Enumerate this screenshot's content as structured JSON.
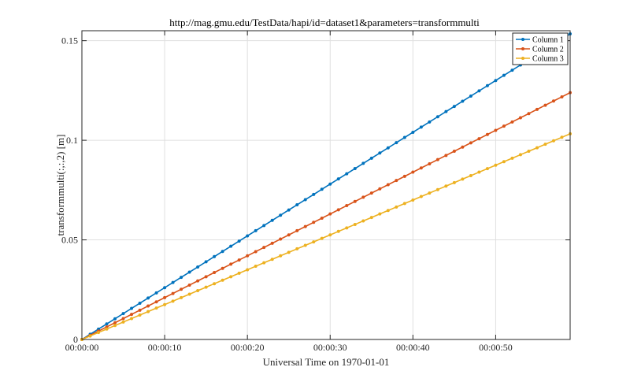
{
  "chart_data": {
    "type": "line",
    "title": "http://mag.gmu.edu/TestData/hapi/id=dataset1&parameters=transformmulti",
    "xlabel": "Universal Time on 1970-01-01",
    "ylabel": "transformmulti(:,:,2) [m]",
    "x_unit": "seconds",
    "xlim": [
      0,
      59
    ],
    "ylim": [
      0,
      0.155
    ],
    "x_ticks": [
      0,
      10,
      20,
      30,
      40,
      50
    ],
    "x_tick_labels": [
      "00:00:00",
      "00:00:10",
      "00:00:20",
      "00:00:30",
      "00:00:40",
      "00:00:50"
    ],
    "y_ticks": [
      0,
      0.05,
      0.1,
      0.15
    ],
    "y_tick_labels": [
      "0",
      "0.05",
      "0.1",
      "0.15"
    ],
    "grid": true,
    "legend_position": "top-right",
    "x": [
      0,
      1,
      2,
      3,
      4,
      5,
      6,
      7,
      8,
      9,
      10,
      11,
      12,
      13,
      14,
      15,
      16,
      17,
      18,
      19,
      20,
      21,
      22,
      23,
      24,
      25,
      26,
      27,
      28,
      29,
      30,
      31,
      32,
      33,
      34,
      35,
      36,
      37,
      38,
      39,
      40,
      41,
      42,
      43,
      44,
      45,
      46,
      47,
      48,
      49,
      50,
      51,
      52,
      53,
      54,
      55,
      56,
      57,
      58,
      59
    ],
    "series": [
      {
        "name": "Column 1",
        "color": "#0072BD",
        "slope": 0.0026,
        "values": [
          0,
          0.0026,
          0.0052,
          0.0078,
          0.0104,
          0.013,
          0.0156,
          0.0182,
          0.0208,
          0.0234,
          0.026,
          0.0286,
          0.0312,
          0.0338,
          0.0364,
          0.039,
          0.0416,
          0.0442,
          0.0468,
          0.0494,
          0.052,
          0.0546,
          0.0572,
          0.0598,
          0.0624,
          0.065,
          0.0676,
          0.0702,
          0.0728,
          0.0754,
          0.078,
          0.0806,
          0.0832,
          0.0858,
          0.0884,
          0.091,
          0.0936,
          0.0962,
          0.0988,
          0.1014,
          0.104,
          0.1066,
          0.1092,
          0.1118,
          0.1144,
          0.117,
          0.1196,
          0.1222,
          0.1248,
          0.1274,
          0.13,
          0.1326,
          0.1352,
          0.1378,
          0.1404,
          0.143,
          0.1456,
          0.1482,
          0.1508,
          0.1534
        ]
      },
      {
        "name": "Column 2",
        "color": "#D95319",
        "slope": 0.0021,
        "values": [
          0,
          0.0021,
          0.0042,
          0.0063,
          0.0084,
          0.0105,
          0.0126,
          0.0147,
          0.0168,
          0.0189,
          0.021,
          0.0231,
          0.0252,
          0.0273,
          0.0294,
          0.0315,
          0.0336,
          0.0357,
          0.0378,
          0.0399,
          0.042,
          0.0441,
          0.0462,
          0.0483,
          0.0504,
          0.0525,
          0.0546,
          0.0567,
          0.0588,
          0.0609,
          0.063,
          0.0651,
          0.0672,
          0.0693,
          0.0714,
          0.0735,
          0.0756,
          0.0777,
          0.0798,
          0.0819,
          0.084,
          0.0861,
          0.0882,
          0.0903,
          0.0924,
          0.0945,
          0.0966,
          0.0987,
          0.1008,
          0.1029,
          0.105,
          0.1071,
          0.1092,
          0.1113,
          0.1134,
          0.1155,
          0.1176,
          0.1197,
          0.1218,
          0.1239
        ]
      },
      {
        "name": "Column 3",
        "color": "#EDB120",
        "slope": 0.00175,
        "values": [
          0,
          0.00175,
          0.0035,
          0.00525,
          0.007,
          0.00875,
          0.0105,
          0.01225,
          0.014,
          0.01575,
          0.0175,
          0.01925,
          0.021,
          0.02275,
          0.0245,
          0.02625,
          0.028,
          0.02975,
          0.0315,
          0.03325,
          0.035,
          0.03675,
          0.0385,
          0.04025,
          0.042,
          0.04375,
          0.0455,
          0.04725,
          0.049,
          0.05075,
          0.0525,
          0.05425,
          0.056,
          0.05775,
          0.0595,
          0.06125,
          0.063,
          0.06475,
          0.0665,
          0.06825,
          0.07,
          0.07175,
          0.0735,
          0.07525,
          0.077,
          0.07875,
          0.0805,
          0.08225,
          0.084,
          0.08575,
          0.0875,
          0.08925,
          0.091,
          0.09275,
          0.0945,
          0.09625,
          0.098,
          0.09975,
          0.1015,
          0.10325
        ]
      }
    ]
  }
}
